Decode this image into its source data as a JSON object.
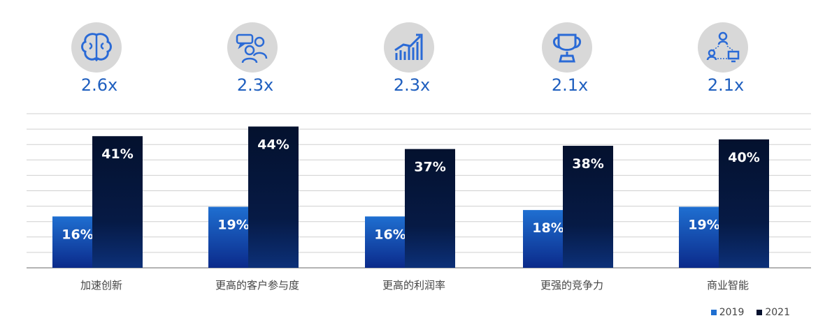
{
  "chart_data": {
    "type": "bar",
    "categories": [
      "加速创新",
      "更高的客户参与度",
      "更高的利润率",
      "更强的竞争力",
      "商业智能"
    ],
    "series": [
      {
        "name": "2019",
        "values": [
          16,
          19,
          16,
          18,
          19
        ],
        "labels": [
          "16%",
          "19%",
          "16%",
          "18%",
          "19%"
        ]
      },
      {
        "name": "2021",
        "values": [
          41,
          44,
          37,
          38,
          40
        ],
        "labels": [
          "41%",
          "44%",
          "37%",
          "38%",
          "40%"
        ]
      }
    ],
    "multipliers": [
      "2.6x",
      "2.3x",
      "2.3x",
      "2.1x",
      "2.1x"
    ],
    "icons": [
      "brain-icon",
      "people-chat-icon",
      "growth-chart-icon",
      "trophy-icon",
      "network-icon"
    ],
    "ylim": [
      0,
      48
    ],
    "grid": true,
    "legend_position": "bottom-right",
    "colors": {
      "2019_top": "#1f6fd1",
      "2019_bottom": "#0b2a8a",
      "2021_top": "#04112e",
      "2021_bottom": "#0a2a6a",
      "icon_bg": "#d8d8d8",
      "icon_line": "#2a6ad6",
      "multiplier": "#1f5fbf",
      "grid": "#cfcfcf",
      "axis": "#9a9a9a"
    }
  }
}
